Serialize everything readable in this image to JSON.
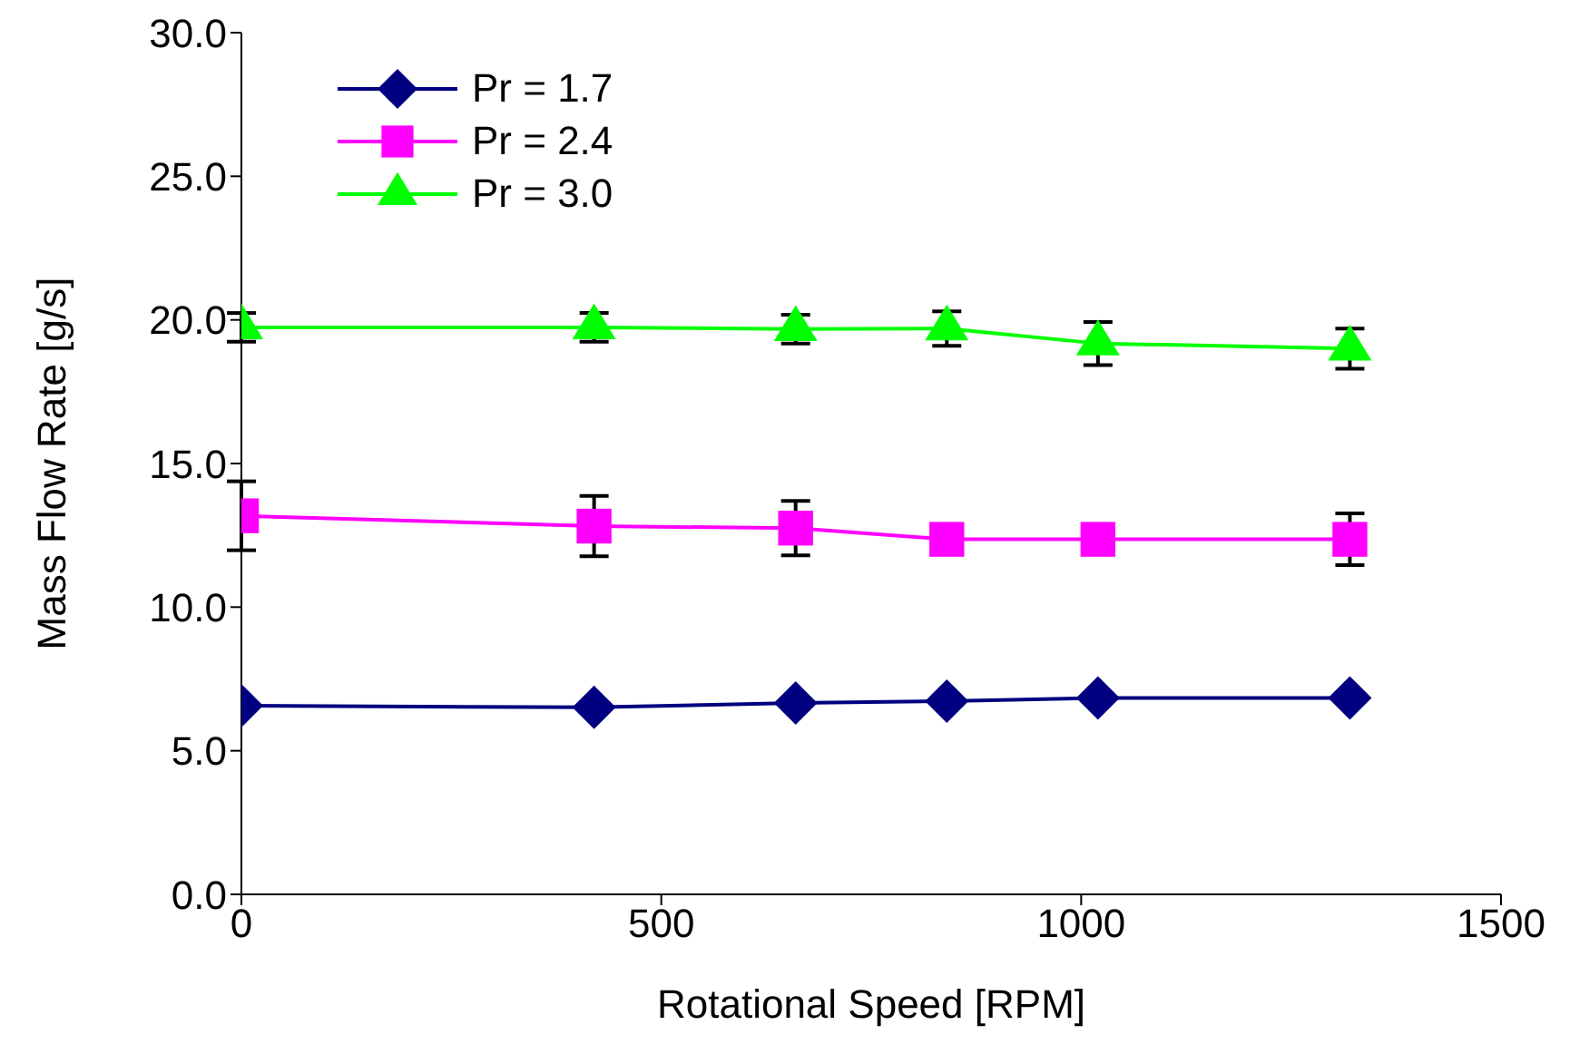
{
  "chart_data": {
    "type": "line",
    "xlabel": "Rotational Speed [RPM]",
    "ylabel": "Mass Flow Rate [g/s]",
    "x": [
      0,
      420,
      660,
      840,
      1020,
      1320
    ],
    "xlim": [
      0,
      1500
    ],
    "xticks": [
      0,
      500,
      1000,
      1500
    ],
    "ylim": [
      0,
      30
    ],
    "yticks": [
      {
        "value": 0,
        "label": "0.0"
      },
      {
        "value": 5,
        "label": "5.0"
      },
      {
        "value": 10,
        "label": "10.0"
      },
      {
        "value": 15,
        "label": "15.0"
      },
      {
        "value": 20,
        "label": "20.0"
      },
      {
        "value": 25,
        "label": "25.0"
      },
      {
        "value": 30,
        "label": "30.0"
      }
    ],
    "grid": false,
    "legend": "top left",
    "series": [
      {
        "name": "Pr = 1.7",
        "color": "#000080",
        "marker": "diamond",
        "values": [
          6.57,
          6.51,
          6.66,
          6.73,
          6.84,
          6.84
        ]
      },
      {
        "name": "Pr = 2.4",
        "color": "#ff00ff",
        "marker": "square",
        "values": [
          13.18,
          12.82,
          12.75,
          12.36,
          12.36,
          12.36
        ],
        "errors": [
          1.2,
          1.05,
          0.95,
          null,
          null,
          0.9
        ]
      },
      {
        "name": "Pr = 3.0",
        "color": "#00ff00",
        "marker": "triangle",
        "values": [
          19.74,
          19.74,
          19.68,
          19.7,
          19.18,
          19.0
        ],
        "errors": [
          0.5,
          0.5,
          0.5,
          0.6,
          0.75,
          0.7
        ]
      }
    ]
  }
}
